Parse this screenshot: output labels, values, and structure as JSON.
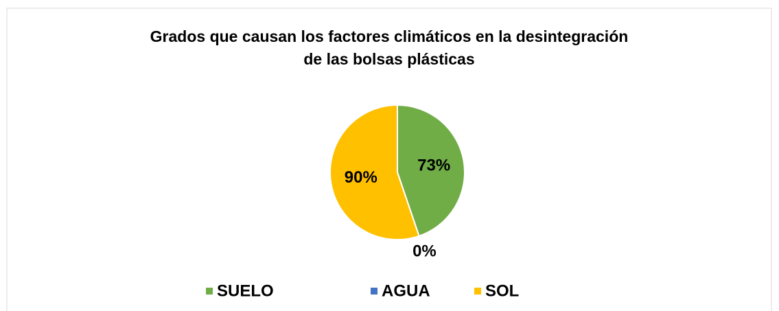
{
  "chart_data": {
    "type": "pie",
    "title": [
      "Grados que causan los factores climáticos en la desintegración",
      "de las bolsas plásticas"
    ],
    "categories": [
      "SUELO",
      "AGUA",
      "SOL"
    ],
    "values": [
      73,
      0,
      90
    ],
    "value_labels": [
      "73%",
      "0%",
      "90%"
    ],
    "colors": [
      "#70ad47",
      "#4472c4",
      "#ffc000"
    ],
    "legend": "bottom"
  }
}
